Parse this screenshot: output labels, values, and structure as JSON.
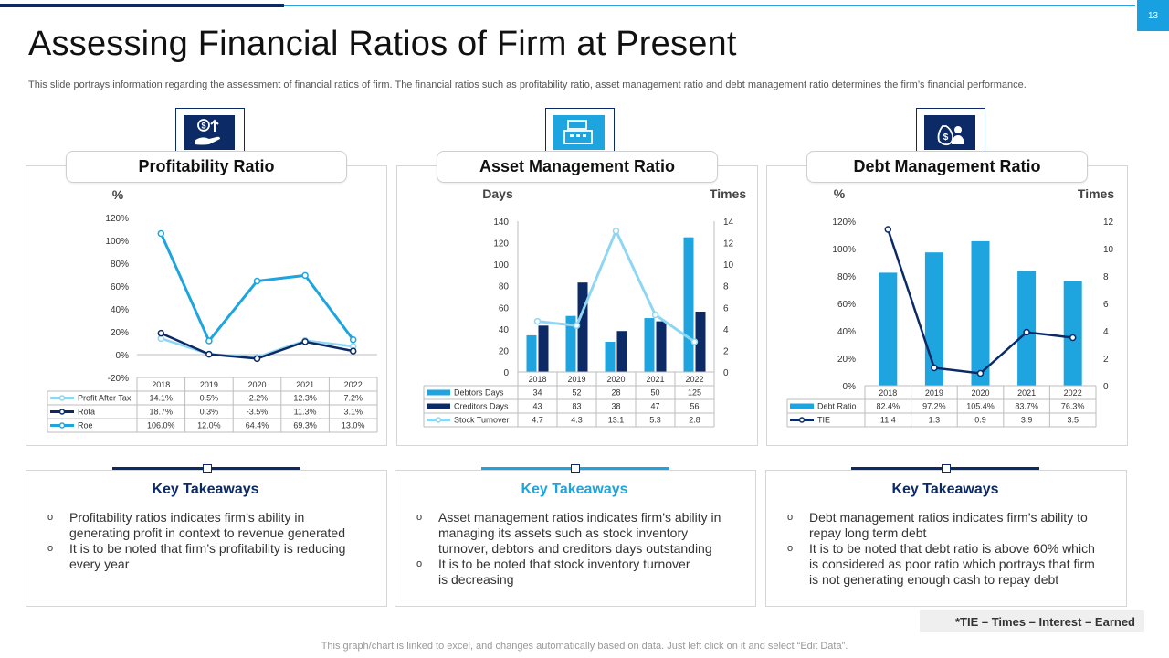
{
  "slide_number": "13",
  "title": "Assessing Financial Ratios of Firm at Present",
  "subtitle": "This slide portrays information regarding the assessment of financial ratios of firm. The financial ratios such as profitability ratio, asset management ratio and debt management ratio determines the firm’s financial performance.",
  "panels": [
    {
      "title": "Profitability Ratio",
      "icon": "money-hand-icon"
    },
    {
      "title": "Asset Management Ratio",
      "icon": "cash-register-icon"
    },
    {
      "title": "Debt Management Ratio",
      "icon": "money-bag-person-icon"
    }
  ],
  "colors": {
    "navy": "#0b2a66",
    "blue": "#1ea5df",
    "light_blue": "#8fd6f3",
    "grid": "#d0d0d0"
  },
  "chart_data": [
    {
      "type": "line",
      "title": "Profitability Ratio",
      "ylabel": "%",
      "categories": [
        "2018",
        "2019",
        "2020",
        "2021",
        "2022"
      ],
      "ylim": [
        -20,
        120
      ],
      "yticks": [
        "-20%",
        "0%",
        "20%",
        "40%",
        "60%",
        "80%",
        "100%",
        "120%"
      ],
      "series": [
        {
          "name": "Profit After Tax",
          "values": [
            14.1,
            0.5,
            -2.2,
            12.3,
            7.2
          ],
          "labels": [
            "14.1%",
            "0.5%",
            "-2.2%",
            "12.3%",
            "7.2%"
          ],
          "color": "#8fd6f3"
        },
        {
          "name": "Rota",
          "values": [
            18.7,
            0.3,
            -3.5,
            11.3,
            3.1
          ],
          "labels": [
            "18.7%",
            "0.3%",
            "-3.5%",
            "11.3%",
            "3.1%"
          ],
          "color": "#0b2a66"
        },
        {
          "name": "Roe",
          "values": [
            106.0,
            12.0,
            64.4,
            69.3,
            13.0
          ],
          "labels": [
            "106.0%",
            "12.0%",
            "64.4%",
            "69.3%",
            "13.0%"
          ],
          "color": "#1ea5df"
        }
      ]
    },
    {
      "type": "bar",
      "title": "Asset Management Ratio",
      "ylabel": "Days",
      "y2label": "Times",
      "categories": [
        "2018",
        "2019",
        "2020",
        "2021",
        "2022"
      ],
      "ylim": [
        0,
        140
      ],
      "yticks": [
        "0",
        "20",
        "40",
        "60",
        "80",
        "100",
        "120",
        "140"
      ],
      "y2lim": [
        0,
        14
      ],
      "y2ticks": [
        "0",
        "2",
        "4",
        "6",
        "8",
        "10",
        "12",
        "14"
      ],
      "series": [
        {
          "name": "Debtors Days",
          "kind": "bar",
          "values": [
            34,
            52,
            28,
            50,
            125
          ],
          "labels": [
            "34",
            "52",
            "28",
            "50",
            "125"
          ],
          "color": "#1ea5df"
        },
        {
          "name": "Creditors Days",
          "kind": "bar",
          "values": [
            43,
            83,
            38,
            47,
            56
          ],
          "labels": [
            "43",
            "83",
            "38",
            "47",
            "56"
          ],
          "color": "#0b2a66"
        },
        {
          "name": "Stock Turnover",
          "kind": "line",
          "axis": "y2",
          "values": [
            4.7,
            4.3,
            13.1,
            5.3,
            2.8
          ],
          "labels": [
            "4.7",
            "4.3",
            "13.1",
            "5.3",
            "2.8"
          ],
          "color": "#8fd6f3"
        }
      ]
    },
    {
      "type": "bar",
      "title": "Debt Management Ratio",
      "ylabel": "%",
      "y2label": "Times",
      "categories": [
        "2018",
        "2019",
        "2020",
        "2021",
        "2022"
      ],
      "ylim": [
        0,
        120
      ],
      "yticks": [
        "0%",
        "20%",
        "40%",
        "60%",
        "80%",
        "100%",
        "120%"
      ],
      "y2lim": [
        0,
        12
      ],
      "y2ticks": [
        "0",
        "2",
        "4",
        "6",
        "8",
        "10",
        "12"
      ],
      "series": [
        {
          "name": "Debt Ratio",
          "kind": "bar",
          "values": [
            82.4,
            97.2,
            105.4,
            83.7,
            76.3
          ],
          "labels": [
            "82.4%",
            "97.2%",
            "105.4%",
            "83.7%",
            "76.3%"
          ],
          "color": "#1ea5df"
        },
        {
          "name": "TIE",
          "kind": "line",
          "axis": "y2",
          "values": [
            11.4,
            1.3,
            0.9,
            3.9,
            3.5
          ],
          "labels": [
            "11.4",
            "1.3",
            "0.9",
            "3.9",
            "3.5"
          ],
          "color": "#0b2a66"
        }
      ]
    }
  ],
  "takeaways": [
    {
      "title": "Key Takeaways",
      "bullet": "o",
      "items": [
        [
          "Profitability ratios indicates firm’s ability in",
          "generating profit in context to revenue generated"
        ],
        [
          "It is to be noted that firm’s profitability is reducing",
          "every year"
        ]
      ]
    },
    {
      "title": "Key Takeaways",
      "bullet": "o",
      "items": [
        [
          "Asset management ratios indicates firm’s ability in",
          "managing its assets such as stock inventory",
          "turnover, debtors and creditors days outstanding"
        ],
        [
          "It is to be noted that stock inventory turnover",
          "is decreasing"
        ]
      ]
    },
    {
      "title": "Key Takeaways",
      "bullet": "o",
      "items": [
        [
          "Debt management ratios indicates firm’s ability to",
          "repay long term debt"
        ],
        [
          "It is to be noted that debt ratio is above 60% which",
          "is considered as poor ratio which portrays that firm",
          "is not generating enough cash to repay debt"
        ]
      ]
    }
  ],
  "tie_note": "*TIE – Times – Interest – Earned",
  "footer": "This graph/chart is linked to excel,  and changes automatically based on data. Just left click on it and select “Edit Data”."
}
